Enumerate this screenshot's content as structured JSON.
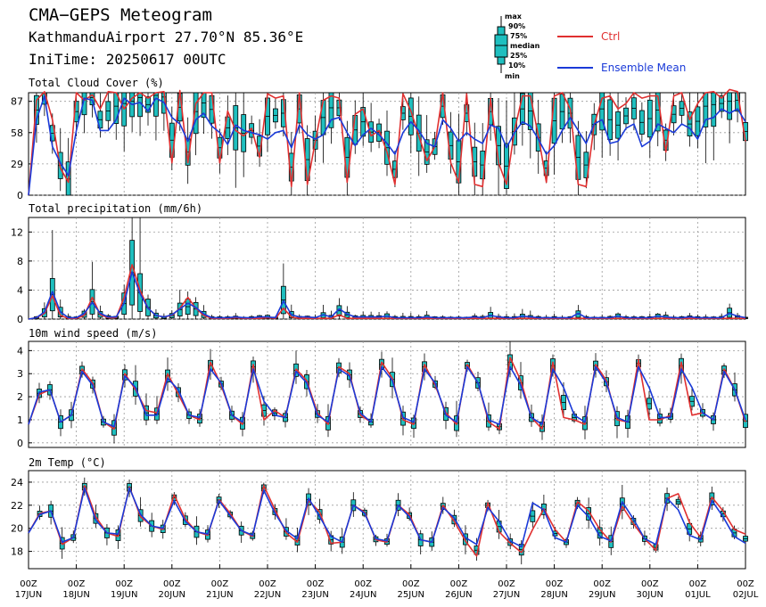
{
  "header": {
    "title": "CMA−GEPS Meteogram",
    "location": "KathmanduAirport 27.70°N 85.36°E",
    "init": "IniTime: 20250617 00UTC"
  },
  "legend": {
    "box_labels": [
      "max",
      "90%",
      "75%",
      "median",
      "25%",
      "10%",
      "min"
    ],
    "ctrl_label": "Ctrl",
    "mean_label": "Ensemble Mean",
    "ctrl_color": "#e03030",
    "mean_color": "#1a3ad8",
    "box_color": "#1fbfbf"
  },
  "x_axis": {
    "ticks": [
      [
        "00Z",
        "17JUN"
      ],
      [
        "00Z",
        "18JUN"
      ],
      [
        "00Z",
        "19JUN"
      ],
      [
        "00Z",
        "20JUN"
      ],
      [
        "00Z",
        "21JUN"
      ],
      [
        "00Z",
        "22JUN"
      ],
      [
        "00Z",
        "23JUN"
      ],
      [
        "00Z",
        "24JUN"
      ],
      [
        "00Z",
        "25JUN"
      ],
      [
        "00Z",
        "26JUN"
      ],
      [
        "00Z",
        "27JUN"
      ],
      [
        "00Z",
        "28JUN"
      ],
      [
        "00Z",
        "29JUN"
      ],
      [
        "00Z",
        "30JUN"
      ],
      [
        "00Z",
        "01JUL"
      ],
      [
        "00Z",
        "02JUL"
      ]
    ]
  },
  "chart_data": [
    {
      "type": "line",
      "title": "Total Cloud Cover (%)",
      "ylim": [
        0,
        95
      ],
      "yticks": [
        0,
        29,
        58,
        87
      ],
      "x": "6-hourly steps from 2025-06-17 00Z to 2025-07-02 00Z",
      "series": [
        {
          "name": "Ctrl",
          "values": [
            0,
            88,
            96,
            70,
            25,
            12,
            95,
            88,
            93,
            80,
            96,
            95,
            80,
            90,
            95,
            90,
            95,
            96,
            30,
            97,
            30,
            85,
            95,
            95,
            30,
            78,
            60,
            55,
            62,
            35,
            94,
            90,
            92,
            8,
            95,
            10,
            50,
            88,
            92,
            90,
            12,
            75,
            80,
            55,
            60,
            40,
            10,
            94,
            78,
            55,
            32,
            45,
            95,
            30,
            12,
            94,
            10,
            8,
            90,
            30,
            10,
            60,
            92,
            92,
            55,
            12,
            92,
            95,
            80,
            10,
            8,
            65,
            90,
            92,
            80,
            85,
            95,
            90,
            92,
            92,
            40,
            92,
            95,
            70,
            85,
            95,
            96,
            90,
            98,
            96,
            50
          ]
        },
        {
          "name": "Ensemble Mean",
          "values": [
            0,
            70,
            92,
            45,
            30,
            18,
            60,
            90,
            88,
            60,
            60,
            70,
            90,
            84,
            86,
            78,
            90,
            86,
            72,
            66,
            50,
            70,
            76,
            64,
            58,
            47,
            65,
            60,
            58,
            56,
            52,
            58,
            60,
            44,
            65,
            56,
            52,
            56,
            70,
            72,
            58,
            46,
            56,
            62,
            56,
            48,
            38,
            58,
            68,
            60,
            48,
            45,
            70,
            62,
            50,
            58,
            52,
            48,
            65,
            62,
            44,
            58,
            68,
            64,
            52,
            38,
            46,
            60,
            72,
            60,
            48,
            66,
            70,
            48,
            50,
            62,
            66,
            45,
            50,
            66,
            62,
            58,
            66,
            62,
            52,
            70,
            72,
            80,
            76,
            80,
            68
          ]
        }
      ]
    },
    {
      "type": "line",
      "title": "Total precipitation (mm/6h)",
      "ylim": [
        0,
        14
      ],
      "yticks": [
        0,
        4,
        8,
        12
      ],
      "series": [
        {
          "name": "Ctrl",
          "values": [
            0,
            0.2,
            0.8,
            3.2,
            0.5,
            0.1,
            0.1,
            0.5,
            3,
            0.6,
            0.2,
            0.2,
            3,
            7.5,
            4,
            1.5,
            0.5,
            0.3,
            0.5,
            1.5,
            3,
            1.5,
            0.5,
            0.1,
            0.1,
            0.1,
            0.2,
            0.1,
            0.1,
            0.1,
            0.2,
            0.1,
            1.5,
            0.3,
            0.1,
            0.1,
            0.1,
            0.1,
            0.1,
            0.6,
            0.1,
            0.1,
            0.1,
            0.1,
            0.1,
            0.1,
            0.1,
            0.1,
            0.1,
            0.1,
            0.1,
            0.1,
            0.1,
            0.1,
            0.1,
            0.1,
            0.1,
            0.1,
            0.1,
            0.1,
            0.1,
            0.1,
            0.1,
            0.1,
            0.1,
            0.1,
            0.1,
            0.1,
            0.1,
            0.1,
            0.1,
            0.1,
            0.1,
            0.1,
            0.1,
            0.1,
            0.1,
            0.1,
            0.1,
            0.1,
            0.1,
            0.1,
            0.1,
            0.1,
            0.1,
            0.1,
            0.1,
            0.1,
            0.1,
            0.1,
            0.1
          ]
        },
        {
          "name": "Ensemble Mean",
          "values": [
            0,
            0.2,
            1,
            3.8,
            1,
            0.2,
            0.2,
            0.8,
            2.3,
            0.8,
            0.3,
            0.3,
            2.2,
            6.5,
            3.5,
            1.5,
            0.5,
            0.3,
            0.6,
            1.4,
            2.2,
            1.6,
            0.7,
            0.2,
            0.2,
            0.2,
            0.3,
            0.2,
            0.2,
            0.3,
            0.3,
            0.2,
            2.5,
            0.6,
            0.3,
            0.3,
            0.2,
            0.6,
            0.3,
            1.4,
            0.7,
            0.3,
            0.3,
            0.3,
            0.3,
            0.4,
            0.2,
            0.2,
            0.2,
            0.2,
            0.3,
            0.2,
            0.2,
            0.2,
            0.2,
            0.2,
            0.3,
            0.2,
            0.5,
            0.3,
            0.2,
            0.2,
            0.4,
            0.3,
            0.2,
            0.2,
            0.2,
            0.2,
            0.2,
            0.8,
            0.2,
            0.2,
            0.2,
            0.2,
            0.4,
            0.2,
            0.2,
            0.2,
            0.2,
            0.4,
            0.3,
            0.2,
            0.2,
            0.3,
            0.2,
            0.2,
            0.2,
            0.2,
            0.8,
            0.4,
            0.2
          ]
        }
      ]
    },
    {
      "type": "line",
      "title": "10m wind speed (m/s)",
      "ylim": [
        -0.2,
        4.4
      ],
      "yticks": [
        0,
        1,
        2,
        3,
        4
      ],
      "series": [
        {
          "name": "Ctrl",
          "values": [
            0.8,
            2.1,
            2.3,
            0.9,
            1.2,
            3.2,
            2.6,
            0.9,
            0.6,
            3,
            2.3,
            1.4,
            1.3,
            3,
            2.1,
            1.2,
            1,
            3.5,
            2.5,
            1.2,
            0.8,
            3.4,
            1,
            1.4,
            1.1,
            3.2,
            2.7,
            1.3,
            0.8,
            3.3,
            3,
            1.2,
            0.9,
            3.5,
            2.8,
            1,
            0.8,
            3.4,
            2.5,
            1.3,
            0.8,
            3.4,
            2.6,
            0.9,
            0.6,
            3.7,
            2.7,
            1.1,
            0.6,
            3.5,
            1.1,
            1,
            0.8,
            3.4,
            2.7,
            1,
            0.9,
            3.6,
            1,
            1,
            1.2,
            3.5,
            1.2,
            1.3,
            1,
            3.2,
            2.3,
            0.9
          ]
        },
        {
          "name": "Ensemble Mean",
          "values": [
            0.8,
            2.2,
            2.3,
            0.9,
            1.2,
            3.1,
            2.5,
            0.9,
            0.7,
            2.9,
            2.4,
            1.2,
            1.2,
            2.8,
            2.3,
            1.2,
            1.1,
            3.2,
            2.6,
            1.2,
            0.9,
            3.2,
            1.8,
            1.2,
            1.1,
            3.1,
            2.6,
            1.2,
            0.9,
            3.2,
            2.9,
            1.3,
            0.9,
            3.3,
            2.7,
            1.1,
            0.9,
            3.2,
            2.6,
            1.2,
            0.9,
            3.3,
            2.6,
            1,
            0.8,
            3.3,
            2.5,
            1.1,
            0.8,
            3.2,
            2.4,
            1.2,
            0.9,
            3.3,
            2.6,
            1.1,
            0.9,
            3.3,
            2.4,
            1.1,
            1.1,
            3.2,
            2.4,
            1.3,
            1,
            3.1,
            2.3,
            1
          ]
        }
      ]
    },
    {
      "type": "line",
      "title": "2m Temp (°C)",
      "ylim": [
        16.5,
        25
      ],
      "yticks": [
        18,
        20,
        22,
        24
      ],
      "series": [
        {
          "name": "Ctrl",
          "values": [
            19.6,
            21.3,
            21.5,
            18.6,
            19.2,
            23.7,
            21,
            19.6,
            19.3,
            23.6,
            21,
            20.2,
            19.9,
            22.9,
            20.8,
            19.7,
            19.4,
            22.5,
            21.3,
            19.8,
            19.3,
            23.7,
            21.6,
            19.6,
            18.8,
            22.4,
            21.4,
            18.7,
            18.8,
            22,
            21.4,
            19,
            18.8,
            22,
            21.2,
            19,
            18.8,
            22,
            20.6,
            18.9,
            17.6,
            22.2,
            19.7,
            18.7,
            17.9,
            19.9,
            21.7,
            19.9,
            18.8,
            22.3,
            21.5,
            19.9,
            18.8,
            21.9,
            20.4,
            19.1,
            18.1,
            22.6,
            23,
            20.5,
            19.2,
            22.7,
            21.5,
            19.9,
            19.5
          ]
        },
        {
          "name": "Ensemble Mean",
          "values": [
            19.6,
            21.2,
            21.5,
            18.8,
            19.2,
            23.5,
            20.7,
            19.6,
            19.5,
            23.5,
            21.2,
            20.2,
            20,
            22.4,
            20.6,
            19.7,
            19.5,
            22.4,
            21.1,
            19.8,
            19.4,
            23.3,
            21.3,
            19.8,
            19.1,
            22.6,
            21,
            19.3,
            18.8,
            22,
            21.3,
            19.1,
            18.9,
            22,
            21,
            19,
            18.8,
            21.8,
            20.9,
            19.2,
            18.6,
            21.8,
            20.6,
            18.9,
            18.4,
            22.2,
            21.6,
            19.2,
            18.8,
            22,
            21,
            19.3,
            18.9,
            22.3,
            20.8,
            19.1,
            18.6,
            22.6,
            21.6,
            19.4,
            19,
            22.4,
            21,
            19.3,
            18.7
          ]
        }
      ]
    }
  ]
}
